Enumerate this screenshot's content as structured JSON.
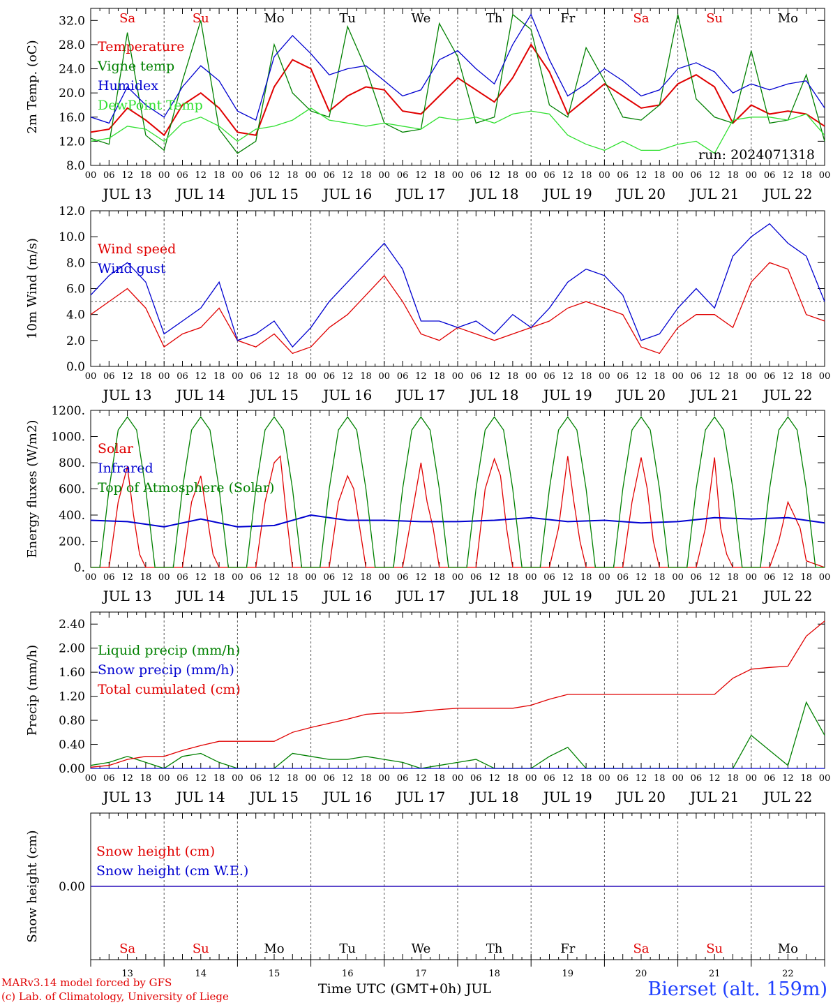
{
  "station_label": "Bierset (alt. 159m)",
  "credits": [
    "MARv3.14 model forced by GFS",
    "(c) Lab. of Climatology, University of Liege"
  ],
  "x_axis_title": "Time UTC (GMT+0h) JUL",
  "run_label": "run: 2024071318",
  "days": [
    "JUL 13",
    "JUL 14",
    "JUL 15",
    "JUL 16",
    "JUL 17",
    "JUL 18",
    "JUL 19",
    "JUL 20",
    "JUL 21",
    "JUL 22"
  ],
  "day_numbers": [
    "13",
    "14",
    "15",
    "16",
    "17",
    "18",
    "19",
    "20",
    "21",
    "22"
  ],
  "weekdays": [
    "Sa",
    "Su",
    "Mo",
    "Tu",
    "We",
    "Th",
    "Fr",
    "Sa",
    "Su",
    "Mo"
  ],
  "weekday_colors": [
    "#e00000",
    "#e00000",
    "#000000",
    "#000000",
    "#000000",
    "#000000",
    "#000000",
    "#e00000",
    "#e00000",
    "#000000"
  ],
  "hour_ticks": [
    "00",
    "06",
    "12",
    "18"
  ],
  "chart_data": [
    {
      "id": "temp",
      "type": "line",
      "ylabel": "2m Temp. (oC)",
      "ylim": [
        8,
        34
      ],
      "yticks": [
        "8.0",
        "12.0",
        "16.0",
        "20.0",
        "24.0",
        "28.0",
        "32.0"
      ],
      "x_unit": "hours since JUL 13 00 UTC",
      "series": [
        {
          "name": "Temperature",
          "color": "#e00000",
          "x": [
            0,
            6,
            12,
            18,
            24,
            30,
            36,
            42,
            48,
            54,
            60,
            66,
            72,
            78,
            84,
            90,
            96,
            102,
            108,
            114,
            120,
            126,
            132,
            138,
            144,
            150,
            156,
            162,
            168,
            174,
            180,
            186,
            192,
            198,
            204,
            210,
            216,
            222,
            228,
            234,
            240
          ],
          "y": [
            13.5,
            14.0,
            17.5,
            15.5,
            13.0,
            18.0,
            20.0,
            17.5,
            13.5,
            13.0,
            21.0,
            25.5,
            24.0,
            17.0,
            19.5,
            21.0,
            20.5,
            17.0,
            16.5,
            19.5,
            22.5,
            20.5,
            18.5,
            22.5,
            28.0,
            23.5,
            16.5,
            19.0,
            21.5,
            19.5,
            17.5,
            18.0,
            21.5,
            23.0,
            21.0,
            15.0,
            18.0,
            16.5,
            17.0,
            16.5,
            14.5
          ]
        },
        {
          "name": "Vigne temp",
          "color": "#008000",
          "x": [
            0,
            6,
            12,
            18,
            24,
            30,
            36,
            42,
            48,
            54,
            60,
            66,
            72,
            78,
            84,
            90,
            96,
            102,
            108,
            114,
            120,
            126,
            132,
            138,
            144,
            150,
            156,
            162,
            168,
            174,
            180,
            186,
            192,
            198,
            204,
            210,
            216,
            222,
            228,
            234,
            240
          ],
          "y": [
            12.5,
            11.5,
            30.0,
            13.0,
            10.5,
            22.0,
            32.0,
            14.0,
            10.0,
            12.0,
            28.0,
            20.0,
            17.0,
            16.0,
            31.0,
            24.0,
            15.0,
            13.5,
            14.0,
            31.5,
            26.0,
            15.0,
            16.0,
            33.0,
            30.5,
            18.0,
            16.0,
            27.5,
            22.0,
            16.0,
            15.5,
            18.0,
            33.0,
            19.0,
            16.0,
            15.0,
            27.0,
            15.0,
            15.5,
            23.0,
            12.0
          ]
        },
        {
          "name": "Humidex",
          "color": "#0000d0",
          "x": [
            0,
            6,
            12,
            18,
            24,
            30,
            36,
            42,
            48,
            54,
            60,
            66,
            72,
            78,
            84,
            90,
            96,
            102,
            108,
            114,
            120,
            126,
            132,
            138,
            144,
            150,
            156,
            162,
            168,
            174,
            180,
            186,
            192,
            198,
            204,
            210,
            216,
            222,
            228,
            234,
            240
          ],
          "y": [
            16.0,
            15.0,
            21.0,
            18.0,
            16.0,
            21.0,
            24.5,
            22.0,
            17.0,
            15.5,
            26.0,
            29.5,
            26.5,
            23.0,
            24.0,
            24.5,
            22.0,
            19.5,
            20.5,
            25.5,
            27.0,
            24.0,
            21.5,
            28.0,
            33.0,
            25.5,
            19.5,
            21.5,
            24.0,
            22.0,
            19.5,
            20.5,
            24.0,
            25.0,
            23.5,
            20.0,
            21.5,
            20.5,
            21.5,
            22.0,
            17.5
          ]
        },
        {
          "name": "DewPoint Temp",
          "color": "#30e030",
          "x": [
            0,
            6,
            12,
            18,
            24,
            30,
            36,
            42,
            48,
            54,
            60,
            66,
            72,
            78,
            84,
            90,
            96,
            102,
            108,
            114,
            120,
            126,
            132,
            138,
            144,
            150,
            156,
            162,
            168,
            174,
            180,
            186,
            192,
            198,
            204,
            210,
            216,
            222,
            228,
            234,
            240
          ],
          "y": [
            12.0,
            12.5,
            14.5,
            14.0,
            12.0,
            15.0,
            16.0,
            14.5,
            12.0,
            14.0,
            14.5,
            15.5,
            17.5,
            15.5,
            15.0,
            14.5,
            15.0,
            14.5,
            14.0,
            16.0,
            15.5,
            16.0,
            15.0,
            16.5,
            17.0,
            16.5,
            13.0,
            11.5,
            10.5,
            12.0,
            10.5,
            10.5,
            11.5,
            12.0,
            10.0,
            15.5,
            16.0,
            16.0,
            15.5,
            16.5,
            13.0
          ]
        }
      ]
    },
    {
      "id": "wind",
      "type": "line",
      "ylabel": "10m Wind (m/s)",
      "ylim": [
        0,
        12
      ],
      "yticks": [
        "0.0",
        "2.0",
        "4.0",
        "6.0",
        "8.0",
        "10.0",
        "12.0"
      ],
      "ref_line": 5,
      "x_unit": "hours since JUL 13 00 UTC",
      "series": [
        {
          "name": "Wind speed",
          "color": "#e00000",
          "x": [
            0,
            6,
            12,
            18,
            24,
            30,
            36,
            42,
            48,
            54,
            60,
            66,
            72,
            78,
            84,
            90,
            96,
            102,
            108,
            114,
            120,
            126,
            132,
            138,
            144,
            150,
            156,
            162,
            168,
            174,
            180,
            186,
            192,
            198,
            204,
            210,
            216,
            222,
            228,
            234,
            240
          ],
          "y": [
            4.0,
            5.0,
            6.0,
            4.5,
            1.5,
            2.5,
            3.0,
            4.5,
            2.0,
            1.5,
            2.5,
            1.0,
            1.5,
            3.0,
            4.0,
            5.5,
            7.0,
            5.0,
            2.5,
            2.0,
            3.0,
            2.5,
            2.0,
            2.5,
            3.0,
            3.5,
            4.5,
            5.0,
            4.5,
            4.0,
            1.5,
            1.0,
            3.0,
            4.0,
            4.0,
            3.0,
            6.5,
            8.0,
            7.5,
            4.0,
            3.5
          ]
        },
        {
          "name": "Wind gust",
          "color": "#0000d0",
          "x": [
            0,
            6,
            12,
            18,
            24,
            30,
            36,
            42,
            48,
            54,
            60,
            66,
            72,
            78,
            84,
            90,
            96,
            102,
            108,
            114,
            120,
            126,
            132,
            138,
            144,
            150,
            156,
            162,
            168,
            174,
            180,
            186,
            192,
            198,
            204,
            210,
            216,
            222,
            228,
            234,
            240
          ],
          "y": [
            5.5,
            7.0,
            8.0,
            6.5,
            2.5,
            3.5,
            4.5,
            6.5,
            2.0,
            2.5,
            3.5,
            1.5,
            3.0,
            5.0,
            6.5,
            8.0,
            9.5,
            7.5,
            3.5,
            3.5,
            3.0,
            3.5,
            2.5,
            4.0,
            3.0,
            4.5,
            6.5,
            7.5,
            7.0,
            5.5,
            2.0,
            2.5,
            4.5,
            6.0,
            4.5,
            8.5,
            10.0,
            11.0,
            9.5,
            8.5,
            5.0
          ]
        }
      ]
    },
    {
      "id": "energy",
      "type": "line",
      "ylabel": "Energy fluxes (W/m2)",
      "ylim": [
        0,
        1200
      ],
      "yticks": [
        "0.",
        "200.",
        "400.",
        "600.",
        "800.",
        "1000.",
        "1200."
      ],
      "x_unit": "hours since JUL 13 00 UTC",
      "series": [
        {
          "name": "Solar",
          "color": "#e00000",
          "x": [
            0,
            6,
            9,
            12,
            14,
            16,
            18,
            24,
            30,
            33,
            36,
            38,
            40,
            42,
            48,
            54,
            57,
            60,
            62,
            64,
            66,
            72,
            78,
            81,
            84,
            86,
            88,
            90,
            96,
            102,
            105,
            108,
            110,
            112,
            114,
            120,
            126,
            129,
            132,
            134,
            136,
            138,
            144,
            150,
            153,
            156,
            158,
            160,
            162,
            168,
            174,
            177,
            180,
            182,
            184,
            186,
            192,
            198,
            201,
            204,
            206,
            208,
            210,
            216,
            222,
            225,
            228,
            230,
            232,
            234,
            240
          ],
          "y": [
            0,
            0,
            500,
            770,
            400,
            100,
            0,
            0,
            0,
            500,
            700,
            400,
            100,
            0,
            0,
            0,
            500,
            800,
            850,
            400,
            0,
            0,
            0,
            500,
            700,
            600,
            300,
            0,
            0,
            0,
            400,
            800,
            500,
            300,
            0,
            0,
            0,
            600,
            830,
            700,
            300,
            0,
            0,
            0,
            300,
            850,
            500,
            200,
            0,
            0,
            0,
            500,
            840,
            600,
            200,
            0,
            0,
            0,
            300,
            840,
            300,
            100,
            0,
            0,
            0,
            200,
            500,
            400,
            300,
            50,
            0
          ]
        },
        {
          "name": "Infrared",
          "color": "#0000d0",
          "x": [
            0,
            12,
            24,
            36,
            48,
            60,
            72,
            84,
            96,
            108,
            120,
            132,
            144,
            156,
            168,
            180,
            192,
            204,
            216,
            228,
            240
          ],
          "y": [
            360,
            350,
            310,
            370,
            310,
            320,
            400,
            360,
            360,
            350,
            350,
            360,
            380,
            350,
            360,
            340,
            350,
            380,
            370,
            380,
            340
          ]
        },
        {
          "name": "Top of Atmosphere (Solar)",
          "color": "#008000",
          "x": [
            0,
            3,
            6,
            9,
            12,
            15,
            18,
            21,
            24
          ],
          "y": [
            0,
            0,
            600,
            1050,
            1150,
            1050,
            600,
            0,
            0
          ],
          "repeat_daily": true
        }
      ]
    },
    {
      "id": "precip",
      "type": "line",
      "ylabel": "Precip (mm/h)",
      "ylim": [
        0,
        2.6
      ],
      "yticks": [
        "0.00",
        "0.40",
        "0.80",
        "1.20",
        "1.60",
        "2.00",
        "2.40"
      ],
      "x_unit": "hours since JUL 13 00 UTC",
      "series": [
        {
          "name": "Liquid precip (mm/h)",
          "color": "#008000",
          "x": [
            0,
            6,
            12,
            18,
            24,
            30,
            36,
            42,
            48,
            54,
            60,
            66,
            72,
            78,
            84,
            90,
            96,
            102,
            108,
            114,
            120,
            126,
            132,
            138,
            144,
            150,
            156,
            162,
            168,
            174,
            180,
            186,
            192,
            198,
            204,
            210,
            216,
            222,
            228,
            234,
            240
          ],
          "y": [
            0.05,
            0.1,
            0.2,
            0.1,
            0.0,
            0.2,
            0.25,
            0.1,
            0.0,
            0.0,
            0.0,
            0.25,
            0.2,
            0.15,
            0.15,
            0.2,
            0.15,
            0.1,
            0.0,
            0.05,
            0.1,
            0.15,
            0.0,
            0.0,
            0.0,
            0.2,
            0.35,
            0.0,
            0.0,
            0.0,
            0.0,
            0.0,
            0.0,
            0.0,
            0.0,
            0.0,
            0.55,
            0.3,
            0.05,
            1.1,
            0.55
          ]
        },
        {
          "name": "Snow precip (mm/h)",
          "color": "#0000d0",
          "x": [
            0,
            240
          ],
          "y": [
            0,
            0
          ]
        },
        {
          "name": "Total cumulated (cm)",
          "color": "#e00000",
          "x": [
            0,
            6,
            12,
            18,
            24,
            30,
            36,
            42,
            48,
            54,
            60,
            66,
            72,
            78,
            84,
            90,
            96,
            102,
            108,
            114,
            120,
            126,
            132,
            138,
            144,
            150,
            156,
            162,
            168,
            174,
            180,
            186,
            192,
            198,
            204,
            210,
            216,
            222,
            228,
            234,
            240
          ],
          "y": [
            0.02,
            0.05,
            0.15,
            0.2,
            0.2,
            0.3,
            0.38,
            0.45,
            0.45,
            0.45,
            0.45,
            0.6,
            0.68,
            0.75,
            0.82,
            0.9,
            0.92,
            0.92,
            0.95,
            0.98,
            1.0,
            1.0,
            1.0,
            1.0,
            1.05,
            1.15,
            1.23,
            1.23,
            1.23,
            1.23,
            1.23,
            1.23,
            1.23,
            1.23,
            1.23,
            1.5,
            1.65,
            1.68,
            1.7,
            2.2,
            2.45
          ]
        }
      ]
    },
    {
      "id": "snow",
      "type": "line",
      "ylabel": "Snow height (cm)",
      "ylim": [
        -1,
        1
      ],
      "yticks": [
        "0.00"
      ],
      "x_unit": "hours since JUL 13 00 UTC",
      "series": [
        {
          "name": "Snow height (cm)",
          "color": "#e00000",
          "x": [
            0,
            240
          ],
          "y": [
            0,
            0
          ]
        },
        {
          "name": "Snow height (cm W.E.)",
          "color": "#0000d0",
          "x": [
            0,
            240
          ],
          "y": [
            0,
            0
          ]
        }
      ]
    }
  ]
}
